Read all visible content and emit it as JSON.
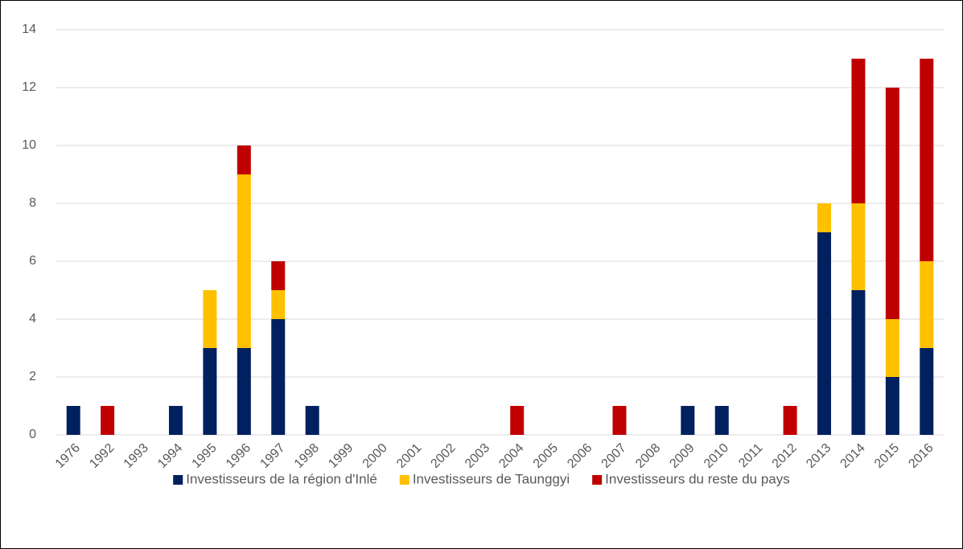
{
  "chart_data": {
    "type": "stacked_bar",
    "categories": [
      "1976",
      "1992",
      "1993",
      "1994",
      "1995",
      "1996",
      "1997",
      "1998",
      "1999",
      "2000",
      "2001",
      "2002",
      "2003",
      "2004",
      "2005",
      "2006",
      "2007",
      "2008",
      "2009",
      "2010",
      "2011",
      "2012",
      "2013",
      "2014",
      "2015",
      "2016"
    ],
    "series": [
      {
        "name": "Investisseurs de la région d'Inlé",
        "color": "#002060",
        "values": [
          1,
          0,
          0,
          1,
          3,
          3,
          4,
          1,
          0,
          0,
          0,
          0,
          0,
          0,
          0,
          0,
          0,
          0,
          1,
          1,
          0,
          0,
          7,
          5,
          2,
          3
        ]
      },
      {
        "name": "Investisseurs de Taunggyi",
        "color": "#ffc000",
        "values": [
          0,
          0,
          0,
          0,
          2,
          6,
          1,
          0,
          0,
          0,
          0,
          0,
          0,
          0,
          0,
          0,
          0,
          0,
          0,
          0,
          0,
          0,
          1,
          3,
          2,
          3
        ]
      },
      {
        "name": "Investisseurs du reste du pays",
        "color": "#c00000",
        "values": [
          0,
          1,
          0,
          0,
          0,
          1,
          1,
          0,
          0,
          0,
          0,
          0,
          0,
          1,
          0,
          0,
          1,
          0,
          0,
          0,
          0,
          1,
          0,
          5,
          8,
          7
        ]
      }
    ],
    "ylim": [
      0,
      14
    ],
    "yticks": [
      0,
      2,
      4,
      6,
      8,
      10,
      12,
      14
    ],
    "grid": true,
    "legend": "bottom"
  }
}
